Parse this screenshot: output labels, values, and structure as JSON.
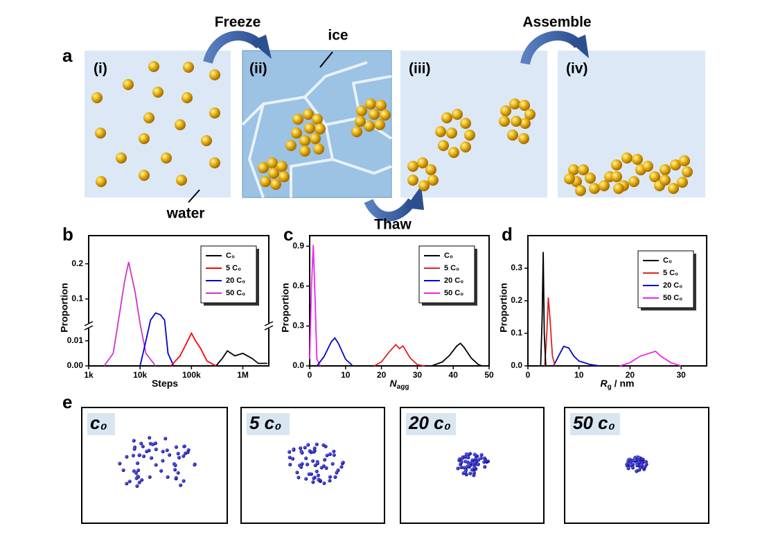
{
  "panel_a": {
    "label": "a",
    "steps": [
      "(i)",
      "(ii)",
      "(iii)",
      "(iv)"
    ],
    "freeze": "Freeze",
    "thaw": "Thaw",
    "assemble": "Assemble",
    "ice": "ice",
    "water": "water"
  },
  "chart_data": [
    {
      "panel": "b",
      "type": "line",
      "ylabel": "Proportion",
      "xlabel": {
        "main": "Steps"
      },
      "xscale": "log",
      "xlim": [
        1000,
        3200000
      ],
      "xticks": [
        {
          "value": 1000,
          "label": "1k"
        },
        {
          "value": 10000,
          "label": "10k"
        },
        {
          "value": 100000,
          "label": "100k"
        },
        {
          "value": 1000000,
          "label": "1M"
        }
      ],
      "broken_axis": true,
      "ylim_lower": [
        0,
        0.016
      ],
      "ylim": [
        0.024,
        0.28
      ],
      "yticks": [
        {
          "value": 0,
          "label": "0.00"
        },
        {
          "value": 0.01,
          "label": "0.01"
        },
        0.1,
        0.2
      ],
      "series": [
        {
          "name": "C₀",
          "color": "#000000",
          "x": [
            300000,
            400000,
            500000,
            700000,
            1000000,
            1500000,
            2000000,
            3000000
          ],
          "values": [
            0,
            0.003,
            0.006,
            0.004,
            0.005,
            0.003,
            0.001,
            0.001
          ]
        },
        {
          "name": "5 C₀",
          "color": "#ff0000",
          "x": [
            40000,
            60000,
            80000,
            100000,
            120000,
            150000,
            200000,
            300000
          ],
          "values": [
            0,
            0.004,
            0.009,
            0.013,
            0.01,
            0.007,
            0.002,
            0
          ]
        },
        {
          "name": "20 C₀",
          "color": "#0000cc",
          "x": [
            10000,
            13000,
            16000,
            20000,
            25000,
            30000,
            35000,
            45000
          ],
          "values": [
            0,
            0.01,
            0.04,
            0.06,
            0.055,
            0.04,
            0.005,
            0
          ]
        },
        {
          "name": "50 C₀",
          "color": "#cc33cc",
          "x": [
            2000,
            3000,
            4000,
            5000,
            6000,
            8000,
            10000,
            13000,
            20000
          ],
          "values": [
            0,
            0.005,
            0.06,
            0.15,
            0.205,
            0.12,
            0.03,
            0.005,
            0
          ]
        }
      ]
    },
    {
      "panel": "c",
      "type": "line",
      "ylabel": "Proportion",
      "xlabel": {
        "main": "N",
        "sub": "agg"
      },
      "xlim": [
        0,
        50
      ],
      "xticks": [
        0,
        10,
        20,
        30,
        40,
        50
      ],
      "ylim": [
        0,
        0.98
      ],
      "yticks": [
        {
          "value": 0,
          "label": "0.0"
        },
        0.3,
        0.6,
        0.9
      ],
      "series": [
        {
          "name": "C₀",
          "color": "#000000",
          "x": [
            34,
            37,
            39,
            41,
            42,
            43,
            45,
            47,
            48
          ],
          "values": [
            0,
            0.03,
            0.08,
            0.15,
            0.17,
            0.14,
            0.06,
            0.01,
            0
          ]
        },
        {
          "name": "5 C₀",
          "color": "#dd2222",
          "x": [
            18,
            20,
            22,
            24,
            25,
            26,
            28,
            30,
            32
          ],
          "values": [
            0,
            0.03,
            0.1,
            0.16,
            0.13,
            0.15,
            0.06,
            0.01,
            0
          ]
        },
        {
          "name": "20 C₀",
          "color": "#0000cc",
          "x": [
            2,
            4,
            6,
            7,
            8,
            10,
            12
          ],
          "values": [
            0,
            0.07,
            0.18,
            0.21,
            0.17,
            0.05,
            0
          ]
        },
        {
          "name": "50 C₀",
          "color": "#ee22ee",
          "x": [
            0,
            0.5,
            1,
            1.5,
            2,
            3
          ],
          "values": [
            0.05,
            0.6,
            0.91,
            0.5,
            0.05,
            0
          ]
        }
      ]
    },
    {
      "panel": "d",
      "type": "line",
      "ylabel": "Proportion",
      "xlabel": {
        "main": "R",
        "sub": "g",
        "rest": " / nm"
      },
      "xlim": [
        0,
        35
      ],
      "xticks": [
        0,
        10,
        20,
        30
      ],
      "ylim": [
        0,
        0.4
      ],
      "yticks": [
        {
          "value": 0,
          "label": "0.0"
        },
        0.1,
        0.2,
        0.3
      ],
      "series": [
        {
          "name": "C₀",
          "color": "#000000",
          "x": [
            2.5,
            2.8,
            3,
            3.2,
            3.5
          ],
          "values": [
            0,
            0.15,
            0.35,
            0.1,
            0
          ]
        },
        {
          "name": "5 C₀",
          "color": "#dd2222",
          "x": [
            3.3,
            3.7,
            4,
            4.3,
            4.8,
            5.3
          ],
          "values": [
            0,
            0.1,
            0.21,
            0.15,
            0.03,
            0
          ]
        },
        {
          "name": "20 C₀",
          "color": "#0000cc",
          "x": [
            5,
            6,
            7,
            8,
            9,
            10,
            12,
            14
          ],
          "values": [
            0,
            0.03,
            0.06,
            0.055,
            0.03,
            0.015,
            0.005,
            0
          ]
        },
        {
          "name": "50 C₀",
          "color": "#ee22ee",
          "x": [
            18,
            20,
            22,
            24,
            25,
            26,
            28,
            30
          ],
          "values": [
            0,
            0.01,
            0.03,
            0.04,
            0.045,
            0.03,
            0.01,
            0
          ]
        }
      ]
    }
  ],
  "panel_e": {
    "label": "e",
    "boxes": [
      "c₀",
      "5 c₀",
      "20 c₀",
      "50 c₀"
    ]
  }
}
